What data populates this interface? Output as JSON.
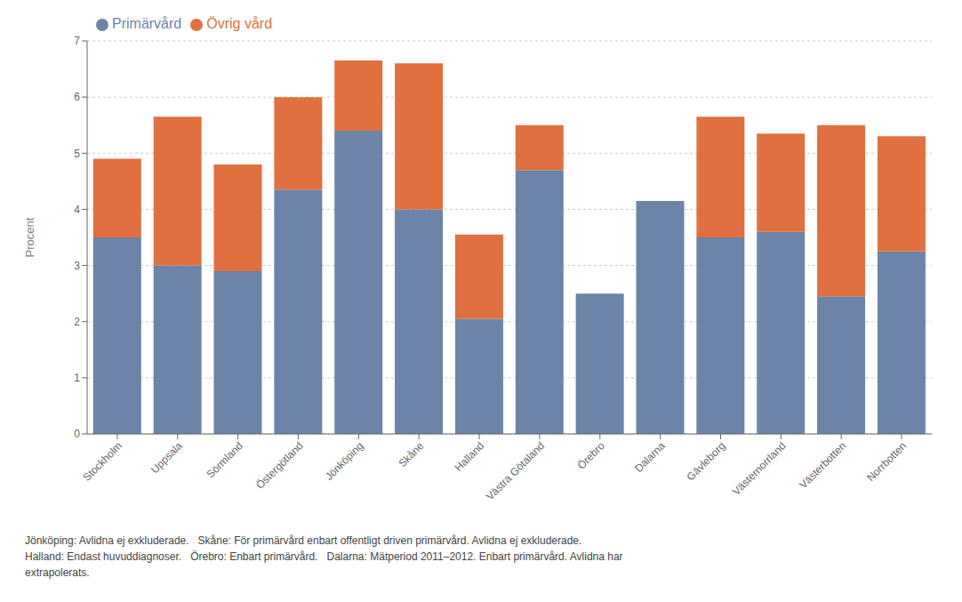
{
  "chart_data": {
    "type": "bar",
    "stacked": true,
    "ylabel": "Procent",
    "categories": [
      "Stockholm",
      "Uppsala",
      "Sörmland",
      "Östergötland",
      "Jönköping",
      "Skåne",
      "Halland",
      "Västra Götaland",
      "Örebro",
      "Dalarna",
      "Gävleborg",
      "Västernorrland",
      "Västerbotten",
      "Norrbotten"
    ],
    "series": [
      {
        "name": "Primärvård",
        "color": "#6b84a8",
        "values": [
          3.5,
          3.0,
          2.9,
          4.35,
          5.4,
          4.0,
          2.05,
          4.7,
          2.5,
          4.15,
          3.5,
          3.6,
          2.45,
          3.25
        ]
      },
      {
        "name": "Övrig vård",
        "color": "#e07040",
        "values": [
          1.4,
          2.65,
          1.9,
          1.65,
          1.25,
          2.6,
          1.5,
          0.8,
          0.0,
          0.0,
          2.15,
          1.75,
          3.05,
          2.05
        ]
      }
    ],
    "ylim": [
      0,
      7
    ],
    "yticks": [
      0,
      1,
      2,
      3,
      4,
      5,
      6,
      7
    ],
    "grid": true,
    "legend": "upper left",
    "footnote": "Jönköping: Avlidna ej exkluderade.   Skåne: För primärvård enbart offentligt driven primärvård. Avlidna ej exkluderade.\nHalland: Endast huvuddiagnoser.   Örebro: Enbart primärvård.   Dalarna: Mätperiod 2011–2012. Enbart primärvård. Avlidna har\nextrapolerats."
  }
}
